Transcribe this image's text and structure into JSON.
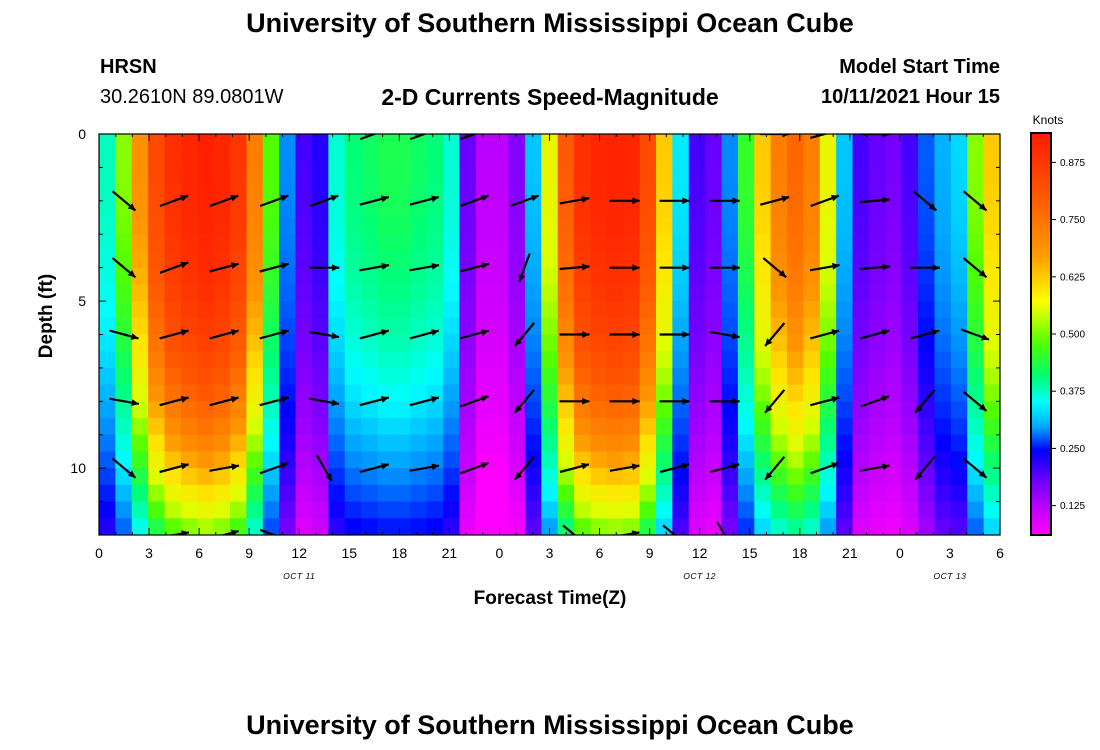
{
  "page": {
    "top_title": "University of Southern Mississippi Ocean Cube",
    "bottom_title": "University of Southern Mississippi Ocean Cube",
    "station": "HRSN",
    "location": "30.2610N  89.0801W",
    "plot_title": "2-D Currents Speed-Magnitude",
    "model_label": "Model Start Time",
    "model_time": "10/11/2021 Hour 15"
  },
  "chart_data": {
    "type": "heatmap",
    "title": "2-D Currents Speed-Magnitude",
    "xlabel": "Forecast Time(Z)",
    "ylabel": "Depth (ft)",
    "x_range_hours": [
      0,
      54
    ],
    "y_range_ft": [
      0,
      12
    ],
    "x_tick_labels": [
      "0",
      "3",
      "6",
      "9",
      "12",
      "15",
      "18",
      "21",
      "0",
      "3",
      "6",
      "9",
      "12",
      "15",
      "18",
      "21",
      "0",
      "3",
      "6"
    ],
    "y_tick_labels": [
      "0",
      "5",
      "10"
    ],
    "y_tick_values": [
      0,
      5,
      10
    ],
    "date_labels": [
      {
        "hour": 12,
        "text": "OCT 11"
      },
      {
        "hour": 36,
        "text": "OCT 12"
      },
      {
        "hour": 51,
        "text": "OCT 13"
      }
    ],
    "colorbar": {
      "unit": "Knots",
      "min": 0.063,
      "max": 0.937,
      "tick_labels": [
        "0.875",
        "0.750",
        "0.625",
        "0.500",
        "0.375",
        "0.250",
        "0.125"
      ],
      "tick_values": [
        0.875,
        0.75,
        0.625,
        0.5,
        0.375,
        0.25,
        0.125
      ]
    },
    "speed_profile": {
      "hours": [
        0,
        1,
        2,
        3,
        4,
        5,
        6,
        7,
        8,
        9,
        10,
        11,
        12,
        13,
        14,
        15,
        16,
        17,
        18,
        19,
        20,
        21,
        22,
        23,
        24,
        25,
        26,
        27,
        28,
        29,
        30,
        31,
        32,
        33,
        34,
        35,
        36,
        37,
        38,
        39,
        40,
        41,
        42,
        43,
        44,
        45,
        46,
        47,
        48,
        49,
        50,
        51,
        52,
        53,
        54
      ],
      "peak_knots": [
        0.39,
        0.5,
        0.65,
        0.78,
        0.85,
        0.88,
        0.9,
        0.88,
        0.83,
        0.68,
        0.48,
        0.3,
        0.2,
        0.22,
        0.38,
        0.42,
        0.43,
        0.44,
        0.44,
        0.43,
        0.42,
        0.38,
        0.18,
        0.12,
        0.12,
        0.16,
        0.33,
        0.55,
        0.74,
        0.85,
        0.88,
        0.89,
        0.88,
        0.78,
        0.6,
        0.35,
        0.2,
        0.18,
        0.3,
        0.46,
        0.6,
        0.68,
        0.72,
        0.68,
        0.55,
        0.33,
        0.2,
        0.18,
        0.17,
        0.2,
        0.28,
        0.32,
        0.34,
        0.5,
        0.6
      ]
    },
    "vector_rows_ft": [
      0,
      2,
      4,
      6,
      8,
      10,
      12
    ],
    "vector_hours": [
      0,
      3,
      6,
      9,
      12,
      15,
      18,
      21,
      24,
      27,
      30,
      33,
      36,
      39,
      42,
      45,
      48,
      51
    ],
    "vector_angles_deg": [
      [
        null,
        null,
        null,
        null,
        null,
        20,
        20,
        20,
        null,
        null,
        null,
        null,
        null,
        0,
        15,
        0,
        null,
        null
      ],
      [
        -40,
        20,
        20,
        20,
        20,
        15,
        15,
        20,
        20,
        10,
        0,
        0,
        0,
        15,
        20,
        5,
        -40,
        -40
      ],
      [
        -40,
        20,
        15,
        15,
        0,
        10,
        10,
        15,
        -110,
        5,
        0,
        0,
        0,
        -40,
        10,
        5,
        0,
        -40
      ],
      [
        -15,
        15,
        15,
        15,
        -10,
        15,
        15,
        15,
        -130,
        0,
        0,
        0,
        -10,
        -130,
        15,
        15,
        15,
        -20
      ],
      [
        -10,
        15,
        15,
        15,
        -10,
        15,
        15,
        20,
        -130,
        0,
        0,
        0,
        0,
        -130,
        15,
        20,
        -130,
        -40
      ],
      [
        -40,
        15,
        10,
        20,
        -60,
        15,
        10,
        20,
        -130,
        15,
        10,
        15,
        15,
        -130,
        20,
        10,
        -130,
        -40
      ],
      [
        null,
        10,
        15,
        -20,
        null,
        null,
        null,
        null,
        null,
        -40,
        10,
        -40,
        -60,
        null,
        null,
        null,
        null,
        null
      ]
    ]
  }
}
